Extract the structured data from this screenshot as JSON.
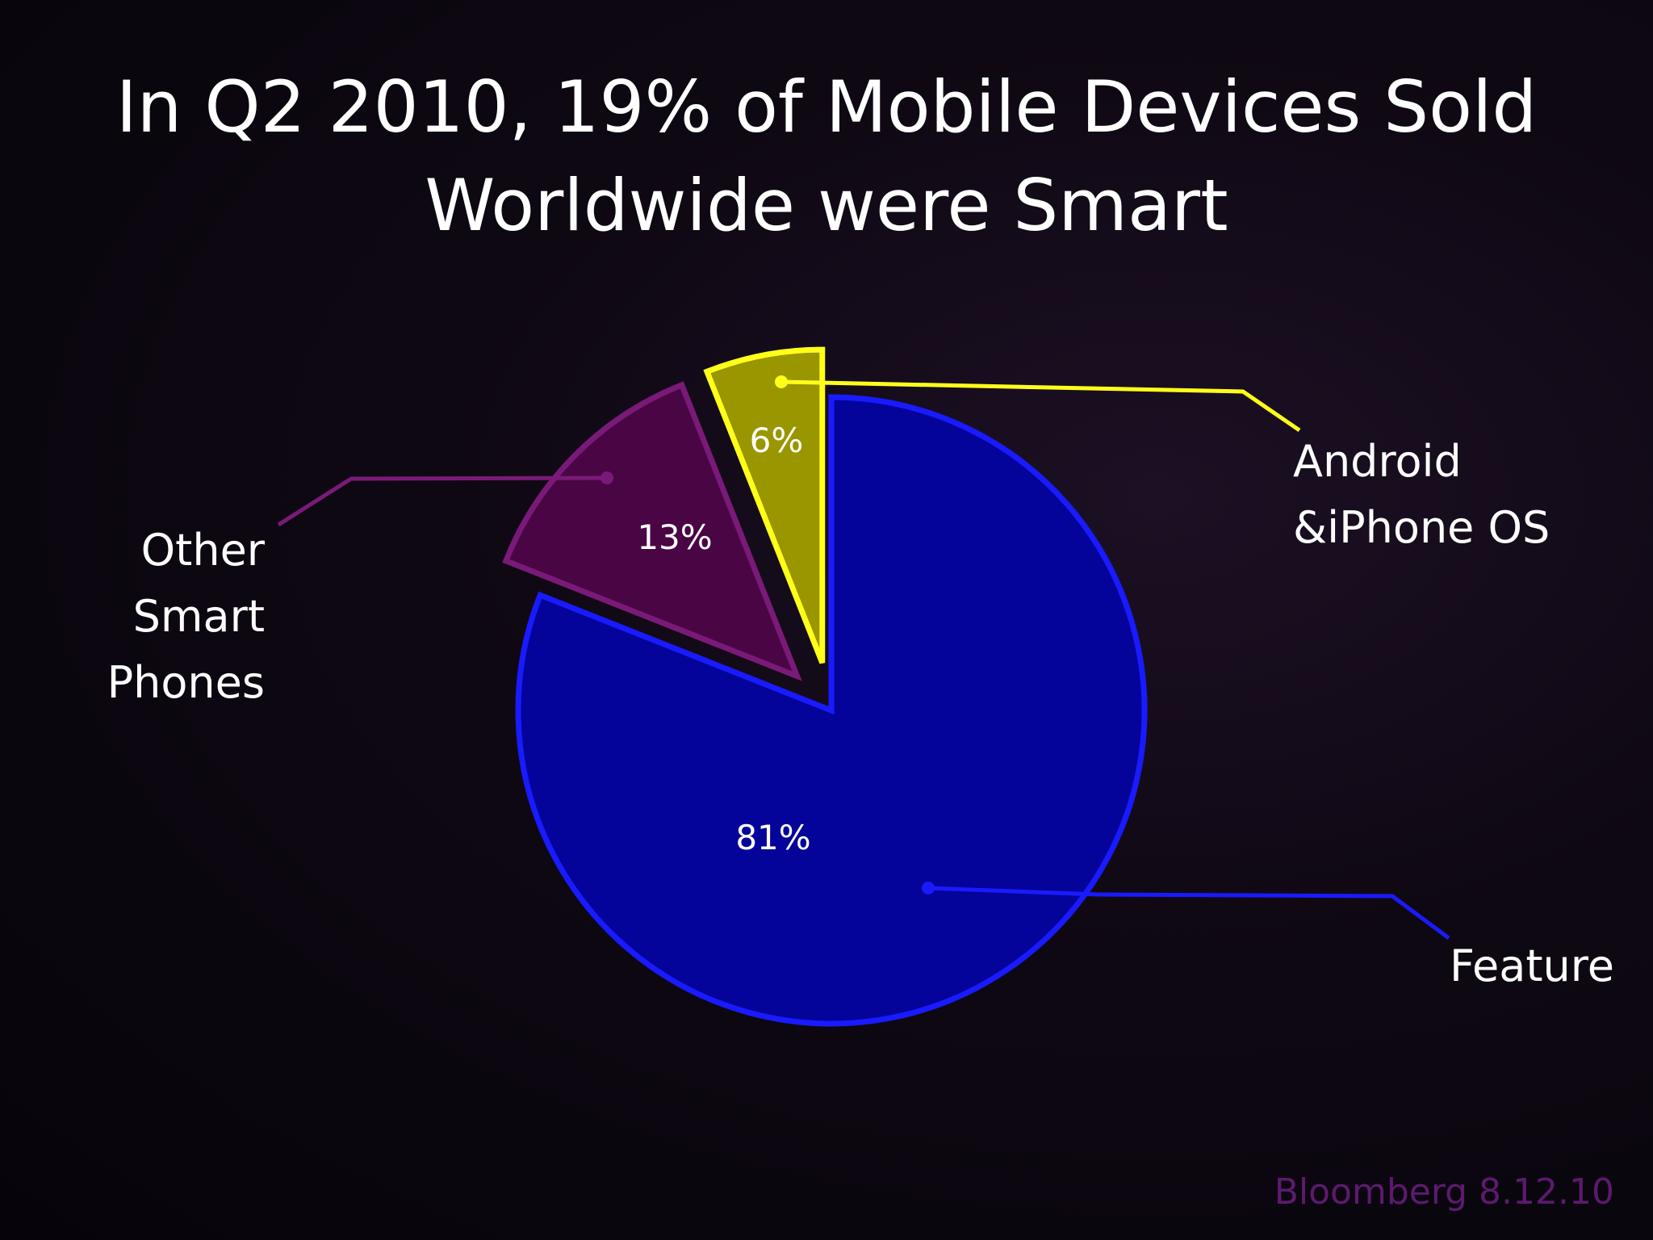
{
  "chart_data": {
    "type": "pie",
    "title_lines": [
      "In Q2 2010, 19% of Mobile Devices Sold",
      "Worldwide were Smart"
    ],
    "slices": [
      {
        "name": "Feature",
        "value": 81,
        "value_label": "81%",
        "label_lines": [
          "Feature"
        ],
        "color": "#04049a",
        "border": "#1a1aff"
      },
      {
        "name": "Other Smart Phones",
        "value": 13,
        "value_label": "13%",
        "label_lines": [
          "Other",
          "Smart",
          "Phones"
        ],
        "color": "#4a0644",
        "border": "#7a1a78"
      },
      {
        "name": "Android &iPhone OS",
        "value": 6,
        "value_label": "6%",
        "label_lines": [
          "Android",
          "&iPhone OS"
        ],
        "color": "#9a9600",
        "border": "#ffff1a"
      }
    ],
    "legend": "none"
  },
  "source": "Bloomberg 8.12.10"
}
